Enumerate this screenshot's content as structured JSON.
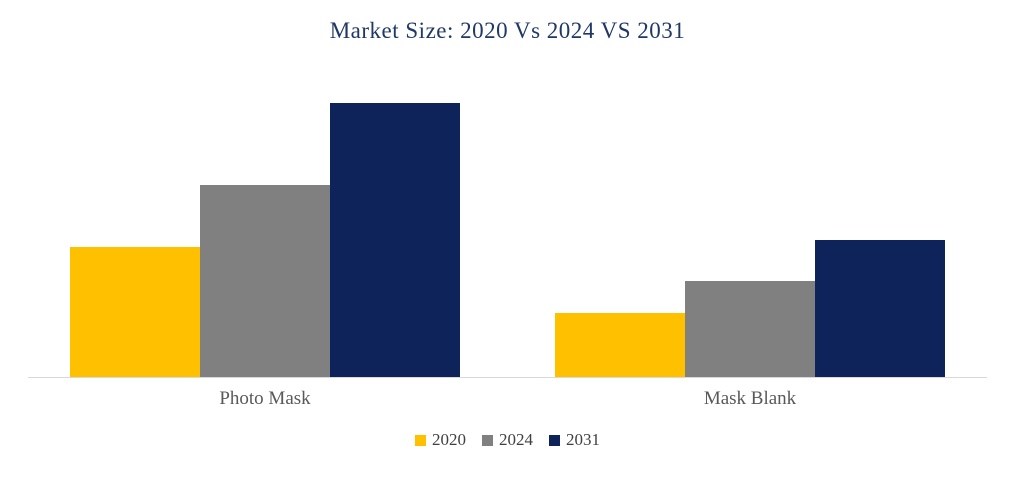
{
  "chart_data": {
    "type": "bar",
    "title": "Market Size: 2020 Vs 2024 VS 2031",
    "xlabel": "",
    "ylabel": "",
    "categories": [
      "Photo Mask",
      "Mask Blank"
    ],
    "series": [
      {
        "name": "2020",
        "color": "#FFC000",
        "values": [
          4.75,
          2.35
        ]
      },
      {
        "name": "2024",
        "color": "#808080",
        "values": [
          7.0,
          3.5
        ]
      },
      {
        "name": "2031",
        "color": "#0D2359",
        "values": [
          10.0,
          5.0
        ]
      }
    ],
    "ylim": [
      0,
      10
    ],
    "grid": false,
    "legend_position": "bottom",
    "colors": {
      "title_text": "#1F3864",
      "category_label_text": "#595959",
      "legend_text": "#404040",
      "axis_line": "#D9D9D9",
      "background": "#FFFFFF"
    }
  }
}
